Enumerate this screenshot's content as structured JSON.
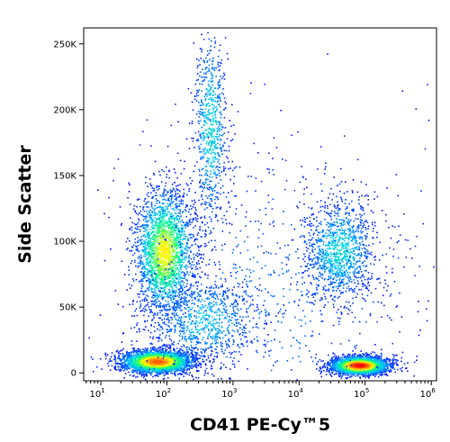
{
  "chart_data": {
    "type": "scatter",
    "title": "",
    "xlabel": "CD41 PE-Cy™5",
    "ylabel": "Side Scatter",
    "x_scale": "log",
    "xlim": [
      5.5,
      1200000
    ],
    "ylim": [
      -6000,
      262144
    ],
    "x_ticks": [
      {
        "value": 10,
        "base": "10",
        "exp": "1"
      },
      {
        "value": 100,
        "base": "10",
        "exp": "2"
      },
      {
        "value": 1000,
        "base": "10",
        "exp": "3"
      },
      {
        "value": 10000,
        "base": "10",
        "exp": "4"
      },
      {
        "value": 100000,
        "base": "10",
        "exp": "5"
      },
      {
        "value": 1000000,
        "base": "10",
        "exp": "6"
      }
    ],
    "y_ticks": [
      {
        "value": 0,
        "label": "0"
      },
      {
        "value": 50000,
        "label": "50K"
      },
      {
        "value": 100000,
        "label": "100K"
      },
      {
        "value": 150000,
        "label": "150K"
      },
      {
        "value": 200000,
        "label": "200K"
      },
      {
        "value": 250000,
        "label": "250K"
      }
    ],
    "colormap": [
      "#0000ff",
      "#00c0ff",
      "#00ff80",
      "#ffff00",
      "#ff8000",
      "#ff0000"
    ],
    "populations": [
      {
        "x_center": 70,
        "y_center": 9000,
        "x_spread_decades": 0.28,
        "y_spread": 4500,
        "count": 2600,
        "peak": 0.85
      },
      {
        "x_center": 80000,
        "y_center": 6000,
        "x_spread_decades": 0.22,
        "y_spread": 3500,
        "count": 2400,
        "peak": 1.0
      },
      {
        "x_center": 90,
        "y_center": 92000,
        "x_spread_decades": 0.22,
        "y_spread": 24000,
        "count": 2200,
        "peak": 0.6
      },
      {
        "x_center": 450,
        "y_center": 185000,
        "x_spread_decades": 0.13,
        "y_spread": 40000,
        "count": 700,
        "peak": 0.25
      },
      {
        "x_center": 40000,
        "y_center": 93000,
        "x_spread_decades": 0.28,
        "y_spread": 20000,
        "count": 1100,
        "peak": 0.25
      },
      {
        "x_center": 350,
        "y_center": 40000,
        "x_spread_decades": 0.45,
        "y_spread": 18000,
        "count": 900,
        "peak": 0.2
      },
      {
        "x_center": 3000,
        "y_center": 60000,
        "x_spread_decades": 1.2,
        "y_spread": 60000,
        "count": 800,
        "peak": 0.1
      }
    ]
  }
}
